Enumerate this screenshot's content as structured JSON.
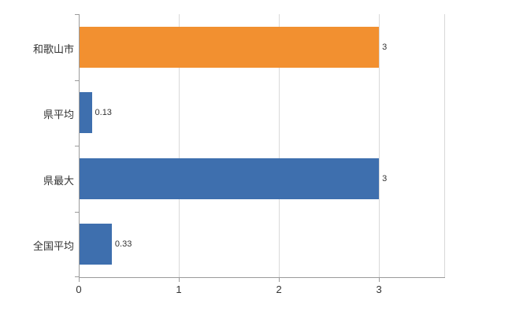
{
  "chart_data": {
    "type": "bar",
    "orientation": "horizontal",
    "title": "",
    "xlabel": "",
    "ylabel": "",
    "categories": [
      "和歌山市",
      "県平均",
      "県最大",
      "全国平均"
    ],
    "values": [
      3,
      0.13,
      3,
      0.33
    ],
    "value_labels": [
      "3",
      "0.13",
      "3",
      "0.33"
    ],
    "bar_colors": [
      "#F29030",
      "#3E6FAE",
      "#3E6FAE",
      "#3E6FAE"
    ],
    "xlim": [
      0,
      3.66
    ],
    "xticks": [
      0,
      1,
      2,
      3
    ],
    "xtick_labels": [
      "0",
      "1",
      "2",
      "3"
    ],
    "grid": true,
    "legend": "none",
    "colors": {
      "grid": "#d9d9d9",
      "axis": "#9b9b9b",
      "text": "#333333",
      "background": "#ffffff"
    }
  }
}
